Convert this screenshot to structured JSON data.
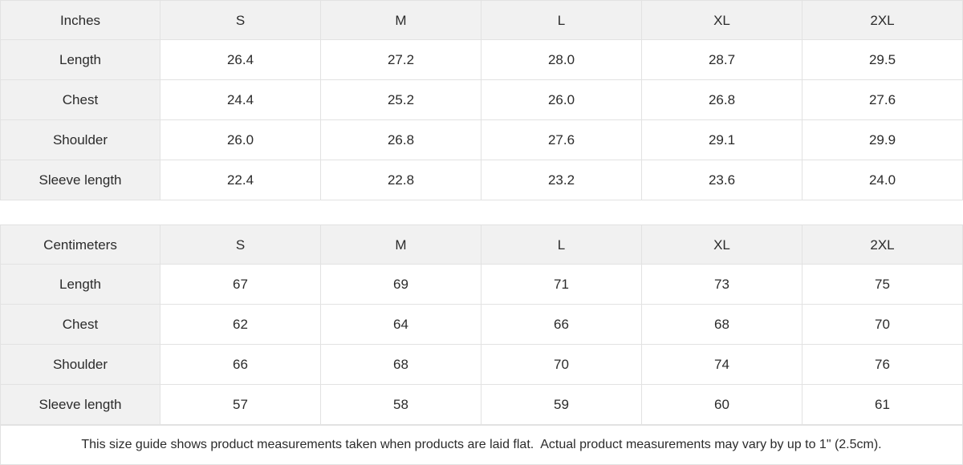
{
  "tables": [
    {
      "unit_label": "Inches",
      "sizes": [
        "S",
        "M",
        "L",
        "XL",
        "2XL"
      ],
      "rows": [
        {
          "label": "Length",
          "values": [
            "26.4",
            "27.2",
            "28.0",
            "28.7",
            "29.5"
          ]
        },
        {
          "label": "Chest",
          "values": [
            "24.4",
            "25.2",
            "26.0",
            "26.8",
            "27.6"
          ]
        },
        {
          "label": "Shoulder",
          "values": [
            "26.0",
            "26.8",
            "27.6",
            "29.1",
            "29.9"
          ]
        },
        {
          "label": "Sleeve length",
          "values": [
            "22.4",
            "22.8",
            "23.2",
            "23.6",
            "24.0"
          ]
        }
      ]
    },
    {
      "unit_label": "Centimeters",
      "sizes": [
        "S",
        "M",
        "L",
        "XL",
        "2XL"
      ],
      "rows": [
        {
          "label": "Length",
          "values": [
            "67",
            "69",
            "71",
            "73",
            "75"
          ]
        },
        {
          "label": "Chest",
          "values": [
            "62",
            "64",
            "66",
            "68",
            "70"
          ]
        },
        {
          "label": "Shoulder",
          "values": [
            "66",
            "68",
            "70",
            "74",
            "76"
          ]
        },
        {
          "label": "Sleeve length",
          "values": [
            "57",
            "58",
            "59",
            "60",
            "61"
          ]
        }
      ]
    }
  ],
  "footer": {
    "note": "This size guide shows product measurements taken when products are laid flat.  Actual product measurements may vary by up to 1\" (2.5cm)."
  },
  "colors": {
    "header_bg": "#f1f1f1",
    "border": "#e2e2e2",
    "text": "#2b2b2b",
    "background": "#ffffff"
  }
}
